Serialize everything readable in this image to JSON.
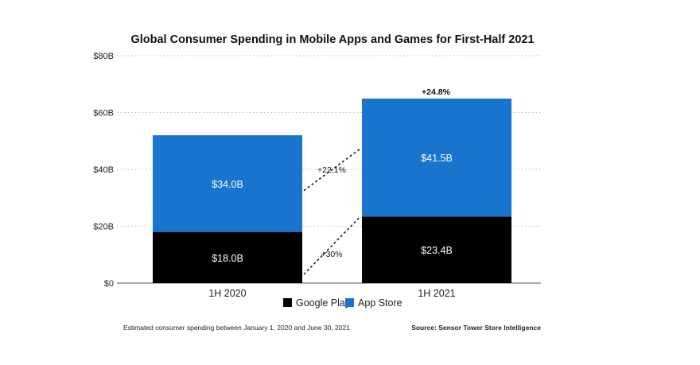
{
  "chart_data": {
    "type": "bar",
    "stacked": true,
    "title": "Global Consumer Spending in Mobile Apps and Games for First-Half 2021",
    "categories": [
      "1H 2020",
      "1H 2021"
    ],
    "series": [
      {
        "name": "Google Play",
        "values": [
          18.0,
          23.4
        ],
        "labels": [
          "$18.0B",
          "$23.4B"
        ],
        "color": "#000000"
      },
      {
        "name": "App Store",
        "values": [
          34.0,
          41.5
        ],
        "labels": [
          "$34.0B",
          "$41.5B"
        ],
        "color": "#1874CD"
      }
    ],
    "ylim": [
      0,
      80
    ],
    "yticks": [
      0,
      20,
      40,
      60,
      80
    ],
    "ytick_labels": [
      "$0",
      "$20B",
      "$40B",
      "$60B",
      "$80B"
    ],
    "grid": true,
    "legend": "bottom",
    "annotations": {
      "total_growth": "+24.8%",
      "app_store_growth": "+22.1%",
      "google_play_growth": "+30%"
    },
    "footnote": "Estimated consumer spending between January 1, 2020 and June 30, 2021",
    "source": "Source: Sensor Tower Store Intelligence"
  }
}
